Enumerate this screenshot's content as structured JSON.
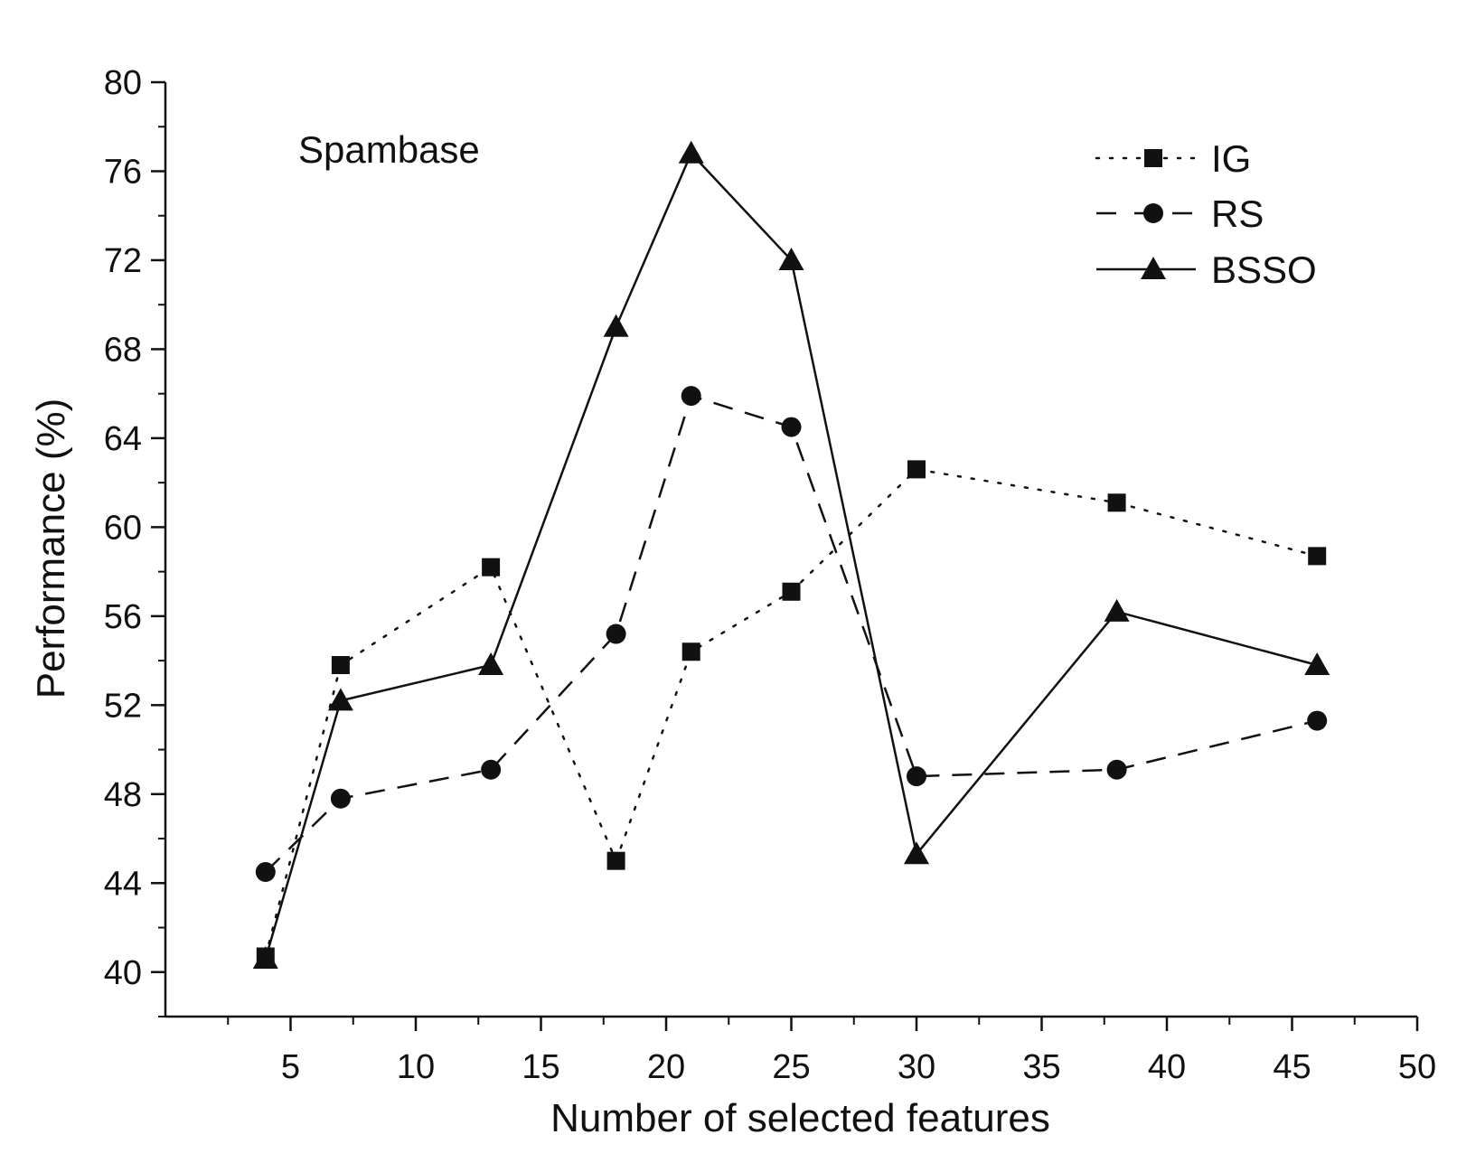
{
  "chart_data": {
    "type": "line",
    "title": "",
    "annotation": "Spambase",
    "xlabel": "Number of selected features",
    "ylabel": "Performance (%)",
    "xlim": [
      0,
      50
    ],
    "ylim": [
      38,
      80
    ],
    "x_ticks": [
      5,
      10,
      15,
      20,
      25,
      30,
      35,
      40,
      45,
      50
    ],
    "x_tick_labels": [
      "5",
      "10",
      "15",
      "20",
      "25",
      "30",
      "35",
      "40",
      "45",
      "50"
    ],
    "y_ticks": [
      40,
      44,
      48,
      52,
      56,
      60,
      64,
      68,
      72,
      76,
      80
    ],
    "y_tick_labels": [
      "40",
      "44",
      "48",
      "52",
      "56",
      "60",
      "64",
      "68",
      "72",
      "76",
      "80"
    ],
    "grid": false,
    "legend_position": "top-right",
    "series": [
      {
        "name": "IG",
        "line_style": "dotted",
        "marker": "square",
        "color": "#111111",
        "x": [
          4,
          7,
          13,
          18,
          21,
          25,
          30,
          38,
          46
        ],
        "values": [
          40.7,
          53.8,
          58.2,
          45.0,
          54.4,
          57.1,
          62.6,
          61.1,
          58.7
        ]
      },
      {
        "name": "RS",
        "line_style": "dashed",
        "marker": "circle",
        "color": "#111111",
        "x": [
          4,
          7,
          13,
          18,
          21,
          25,
          30,
          38,
          46
        ],
        "values": [
          44.5,
          47.8,
          49.1,
          55.2,
          65.9,
          64.5,
          48.8,
          49.1,
          51.3
        ]
      },
      {
        "name": "BSSO",
        "line_style": "solid",
        "marker": "triangle",
        "color": "#111111",
        "x": [
          4,
          7,
          13,
          18,
          21,
          25,
          30,
          38,
          46
        ],
        "values": [
          40.6,
          52.2,
          53.8,
          69.0,
          76.8,
          72.0,
          45.3,
          56.2,
          53.8
        ]
      }
    ]
  }
}
